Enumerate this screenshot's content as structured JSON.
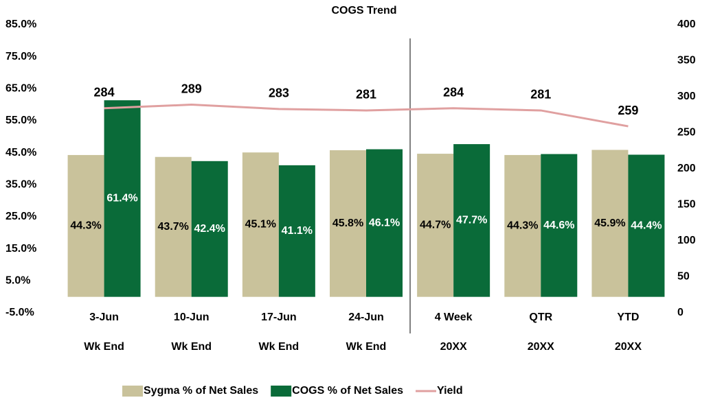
{
  "chart_data": {
    "type": "bar-line",
    "title": "COGS Trend",
    "categories": [
      [
        "3-Jun",
        "Wk End"
      ],
      [
        "10-Jun",
        "Wk End"
      ],
      [
        "17-Jun",
        "Wk End"
      ],
      [
        "24-Jun",
        "Wk End"
      ],
      [
        "4 Week",
        "20XX"
      ],
      [
        "QTR",
        "20XX"
      ],
      [
        "YTD",
        "20XX"
      ]
    ],
    "series": [
      {
        "name": "Sygma % of Net Sales",
        "color": "#c9c29b",
        "type": "bar",
        "values": [
          44.3,
          43.7,
          45.1,
          45.8,
          44.7,
          44.3,
          45.9
        ],
        "value_labels": [
          "44.3%",
          "43.7%",
          "45.1%",
          "45.8%",
          "44.7%",
          "44.3%",
          "45.9%"
        ]
      },
      {
        "name": "COGS % of Net Sales",
        "color": "#0a6b39",
        "type": "bar",
        "values": [
          61.4,
          42.4,
          41.1,
          46.1,
          47.7,
          44.6,
          44.4
        ],
        "value_labels": [
          "61.4%",
          "42.4%",
          "41.1%",
          "46.1%",
          "47.7%",
          "44.6%",
          "44.4%"
        ]
      },
      {
        "name": "Yield",
        "color": "#e0a0a0",
        "type": "line",
        "axis": "y2",
        "values": [
          284,
          289,
          283,
          281,
          284,
          281,
          259
        ]
      }
    ],
    "ylim": [
      -5,
      85
    ],
    "yticks": [
      {
        "value": -5,
        "label": "-5.0%"
      },
      {
        "value": 5,
        "label": "5.0%"
      },
      {
        "value": 15,
        "label": "15.0%"
      },
      {
        "value": 25,
        "label": "25.0%"
      },
      {
        "value": 35,
        "label": "35.0%"
      },
      {
        "value": 45,
        "label": "45.0%"
      },
      {
        "value": 55,
        "label": "55.0%"
      },
      {
        "value": 65,
        "label": "65.0%"
      },
      {
        "value": 75,
        "label": "75.0%"
      },
      {
        "value": 85,
        "label": "85.0%"
      }
    ],
    "y2lim": [
      0,
      400
    ],
    "y2ticks": [
      0,
      50,
      100,
      150,
      200,
      250,
      300,
      350,
      400
    ],
    "grid": false,
    "legend": "bottom"
  }
}
